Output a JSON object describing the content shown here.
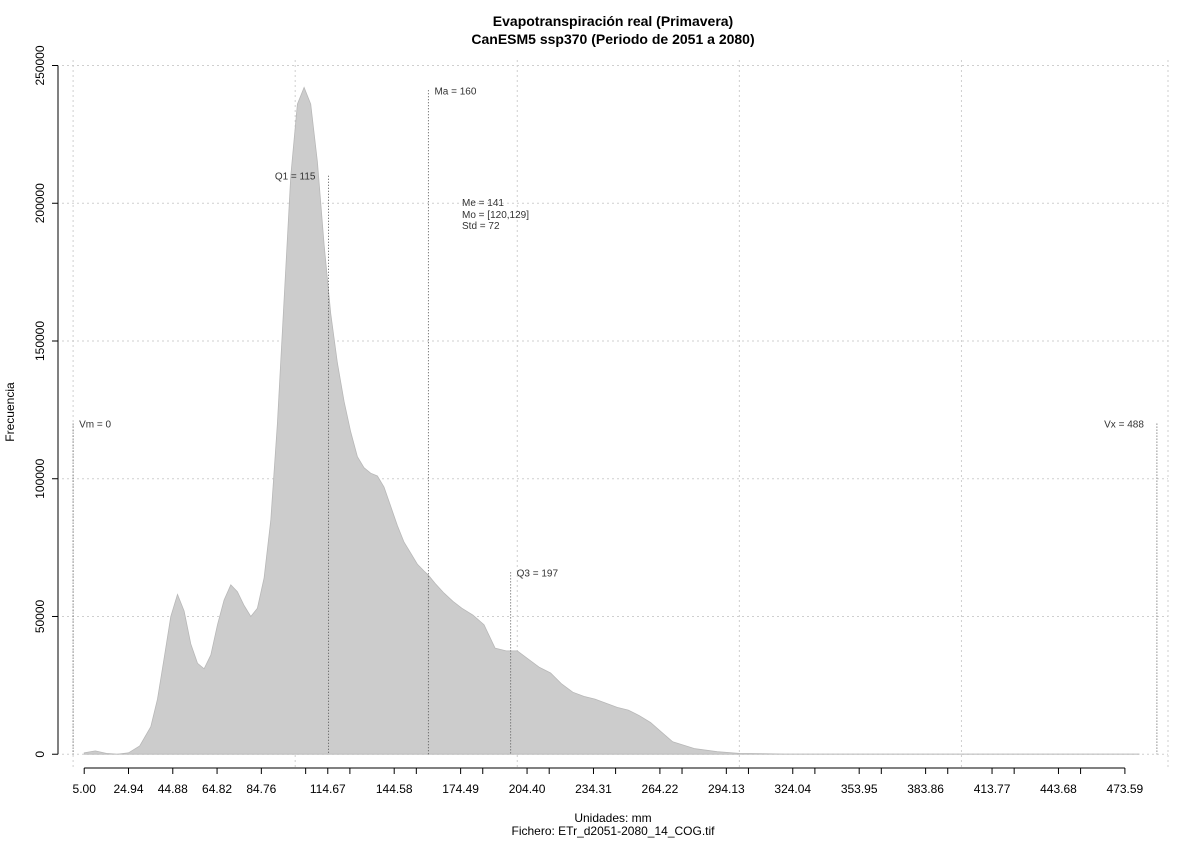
{
  "chart_data": {
    "type": "area",
    "title": "Evapotranspiración real (Primavera)",
    "subtitle": "CanESM5 ssp370 (Periodo de 2051 a 2080)",
    "xlabel": "Unidades: mm",
    "ylabel": "Frecuencia",
    "caption": "Fichero: ETr_d2051-2080_14_COG.tif",
    "xlim": [
      -5,
      493
    ],
    "ylim": [
      -5000,
      252000
    ],
    "x_ticks": [
      5,
      24.94,
      44.88,
      64.82,
      84.76,
      104.71,
      114.67,
      124.63,
      144.58,
      154.54,
      174.49,
      184.45,
      204.4,
      214.37,
      234.31,
      244.27,
      264.22,
      274.18,
      294.13,
      304.09,
      324.04,
      334.0,
      353.95,
      363.91,
      383.86,
      393.82,
      413.77,
      423.73,
      443.68,
      453.64,
      473.59
    ],
    "x_tick_labels": [
      "5.00",
      "24.94",
      "44.88",
      "64.82",
      "84.76",
      "114.67",
      "144.58",
      "174.49",
      "204.40",
      "234.31",
      "264.22",
      "294.13",
      "324.04",
      "353.95",
      "383.86",
      "413.77",
      "443.68",
      "473.59"
    ],
    "x_labeled_ticks": [
      5,
      24.94,
      44.88,
      64.82,
      84.76,
      114.67,
      144.58,
      174.49,
      204.4,
      234.31,
      264.22,
      294.13,
      324.04,
      353.95,
      383.86,
      413.77,
      443.68,
      473.59
    ],
    "y_ticks": [
      0,
      50000,
      100000,
      150000,
      200000,
      250000
    ],
    "y_tick_labels": [
      "0",
      "50000",
      "100000",
      "150000",
      "200000",
      "250000"
    ],
    "x_grid": [
      0,
      100,
      200,
      300,
      400
    ],
    "y_grid": [
      0,
      50000,
      100000,
      150000,
      200000,
      250000
    ],
    "grid": true,
    "fill_color": "#cccccc",
    "series": [
      {
        "x": [
          5,
          10,
          15,
          20,
          25,
          30,
          35,
          38,
          41,
          44,
          47,
          50,
          53,
          56,
          59,
          62,
          65,
          68,
          71,
          74,
          77,
          80,
          83,
          86,
          89,
          92,
          95,
          98,
          101,
          104,
          107,
          110,
          113,
          116,
          119,
          122,
          125,
          128,
          131,
          134,
          137,
          140,
          143,
          146,
          149,
          152,
          155,
          158,
          160,
          163,
          167,
          171,
          175,
          180,
          185,
          190,
          195,
          200,
          205,
          210,
          215,
          220,
          225,
          230,
          235,
          240,
          245,
          250,
          255,
          260,
          265,
          270,
          280,
          290,
          300,
          310,
          320,
          330,
          340,
          350,
          355,
          360,
          370,
          380,
          390,
          400,
          410,
          420,
          430,
          440,
          450,
          460,
          470,
          480
        ],
        "y": [
          500,
          1200,
          300,
          0,
          500,
          3000,
          10000,
          20000,
          35000,
          50000,
          58000,
          52000,
          40000,
          33000,
          31000,
          36000,
          47000,
          56000,
          61500,
          59000,
          54000,
          50000,
          53000,
          64000,
          85000,
          120000,
          165000,
          210000,
          236000,
          242000,
          236000,
          215000,
          185000,
          160000,
          142000,
          128000,
          117000,
          108000,
          104000,
          102000,
          101000,
          97000,
          90000,
          83000,
          77000,
          73000,
          69000,
          66500,
          65000,
          62000,
          58500,
          55500,
          53000,
          50500,
          47000,
          38500,
          37500,
          37500,
          34500,
          31500,
          29500,
          25500,
          22500,
          21000,
          20000,
          18500,
          17000,
          16000,
          14000,
          11500,
          8000,
          4500,
          2000,
          900,
          300,
          200,
          100,
          100,
          100,
          100,
          100,
          100,
          100,
          100,
          100,
          100,
          100,
          100,
          100,
          100,
          100,
          100,
          100,
          100
        ],
        "values_note": ""
      }
    ],
    "markers": [
      {
        "x": 0,
        "top": 120000,
        "label": "Vm = 0",
        "label_side": "right"
      },
      {
        "x": 115,
        "top": 210000,
        "label": "Q1 = 115",
        "label_side": "left"
      },
      {
        "x": 160,
        "top": 241000,
        "label": "Ma = 160",
        "label_side": "right"
      },
      {
        "x": 197,
        "top": 66000,
        "label": "Q3 = 197",
        "label_side": "right"
      },
      {
        "x": 488,
        "top": 120000,
        "label": "Vx = 488",
        "label_side": "left"
      }
    ],
    "stats": [
      {
        "label": "Me = 141"
      },
      {
        "label": "Mo = [120,129]"
      },
      {
        "label": "Std = 72"
      }
    ]
  }
}
